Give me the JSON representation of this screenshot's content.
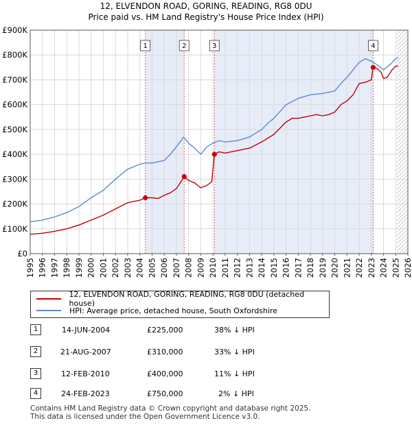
{
  "title_line1": "12, ELVENDON ROAD, GORING, READING, RG8 0DU",
  "title_line2": "Price paid vs. HM Land Registry's House Price Index (HPI)",
  "colors": {
    "property": "#c00000",
    "hpi": "#5b8bd0",
    "shade": "#e6ecf8",
    "marker": "#cc0000"
  },
  "legend": {
    "property_label": "12, ELVENDON ROAD, GORING, READING, RG8 0DU (detached house)",
    "hpi_label": "HPI: Average price, detached house, South Oxfordshire"
  },
  "sales": [
    {
      "num": "1",
      "date": "14-JUN-2004",
      "price": "£225,000",
      "hpi": "38% ↓ HPI"
    },
    {
      "num": "2",
      "date": "21-AUG-2007",
      "price": "£310,000",
      "hpi": "33% ↓ HPI"
    },
    {
      "num": "3",
      "date": "12-FEB-2010",
      "price": "£400,000",
      "hpi": "11% ↓ HPI"
    },
    {
      "num": "4",
      "date": "24-FEB-2023",
      "price": "£750,000",
      "hpi": "2% ↓ HPI"
    }
  ],
  "footer_line1": "Contains HM Land Registry data © Crown copyright and database right 2025.",
  "footer_line2": "This data is licensed under the Open Government Licence v3.0.",
  "chart_data": {
    "type": "line",
    "title": "12, ELVENDON ROAD, GORING, READING, RG8 0DU",
    "subtitle": "Price paid vs. HM Land Registry's House Price Index (HPI)",
    "xlim": [
      1995,
      2026
    ],
    "ylim": [
      0,
      900000
    ],
    "x_ticks": [
      1995,
      1996,
      1997,
      1998,
      1999,
      2000,
      2001,
      2002,
      2003,
      2004,
      2005,
      2006,
      2007,
      2008,
      2009,
      2010,
      2011,
      2012,
      2013,
      2014,
      2015,
      2016,
      2017,
      2018,
      2019,
      2020,
      2021,
      2022,
      2023,
      2024,
      2025,
      2026
    ],
    "y_ticks": [
      {
        "value": 0,
        "label": "£0"
      },
      {
        "value": 100000,
        "label": "£100K"
      },
      {
        "value": 200000,
        "label": "£200K"
      },
      {
        "value": 300000,
        "label": "£300K"
      },
      {
        "value": 400000,
        "label": "£400K"
      },
      {
        "value": 500000,
        "label": "£500K"
      },
      {
        "value": 600000,
        "label": "£600K"
      },
      {
        "value": 700000,
        "label": "£700K"
      },
      {
        "value": 800000,
        "label": "£800K"
      },
      {
        "value": 900000,
        "label": "£900K"
      }
    ],
    "grid": true,
    "shaded_periods": [
      [
        2004.45,
        2007.64
      ],
      [
        2010.12,
        2023.15
      ]
    ],
    "future_hatch_from": 2025.1,
    "series": [
      {
        "name": "12, ELVENDON ROAD, GORING, READING, RG8 0DU (detached house)",
        "color": "#c00000",
        "points": [
          [
            1995.0,
            78000
          ],
          [
            1996.0,
            82000
          ],
          [
            1997.0,
            90000
          ],
          [
            1998.0,
            100000
          ],
          [
            1999.0,
            115000
          ],
          [
            2000.0,
            135000
          ],
          [
            2001.0,
            155000
          ],
          [
            2002.0,
            180000
          ],
          [
            2003.0,
            205000
          ],
          [
            2004.0,
            215000
          ],
          [
            2004.45,
            225000
          ],
          [
            2005.0,
            225000
          ],
          [
            2005.5,
            222000
          ],
          [
            2006.0,
            235000
          ],
          [
            2006.5,
            245000
          ],
          [
            2007.0,
            262000
          ],
          [
            2007.64,
            310000
          ],
          [
            2008.0,
            295000
          ],
          [
            2008.5,
            285000
          ],
          [
            2009.0,
            265000
          ],
          [
            2009.5,
            275000
          ],
          [
            2009.9,
            290000
          ],
          [
            2010.12,
            400000
          ],
          [
            2010.5,
            410000
          ],
          [
            2011.0,
            405000
          ],
          [
            2012.0,
            415000
          ],
          [
            2013.0,
            425000
          ],
          [
            2014.0,
            450000
          ],
          [
            2015.0,
            480000
          ],
          [
            2016.0,
            530000
          ],
          [
            2016.5,
            545000
          ],
          [
            2017.0,
            545000
          ],
          [
            2017.5,
            550000
          ],
          [
            2018.0,
            555000
          ],
          [
            2018.5,
            560000
          ],
          [
            2019.0,
            555000
          ],
          [
            2019.5,
            560000
          ],
          [
            2020.0,
            570000
          ],
          [
            2020.5,
            600000
          ],
          [
            2021.0,
            615000
          ],
          [
            2021.5,
            640000
          ],
          [
            2022.0,
            685000
          ],
          [
            2022.5,
            690000
          ],
          [
            2023.0,
            700000
          ],
          [
            2023.15,
            750000
          ],
          [
            2023.5,
            745000
          ],
          [
            2023.8,
            730000
          ],
          [
            2024.0,
            705000
          ],
          [
            2024.3,
            710000
          ],
          [
            2024.7,
            740000
          ],
          [
            2025.0,
            755000
          ],
          [
            2025.2,
            755000
          ]
        ]
      },
      {
        "name": "HPI: Average price, detached house, South Oxfordshire",
        "color": "#5b8bd0",
        "points": [
          [
            1995.0,
            128000
          ],
          [
            1996.0,
            135000
          ],
          [
            1997.0,
            148000
          ],
          [
            1998.0,
            165000
          ],
          [
            1999.0,
            190000
          ],
          [
            2000.0,
            225000
          ],
          [
            2001.0,
            255000
          ],
          [
            2002.0,
            300000
          ],
          [
            2003.0,
            340000
          ],
          [
            2004.0,
            360000
          ],
          [
            2004.45,
            365000
          ],
          [
            2005.0,
            365000
          ],
          [
            2006.0,
            375000
          ],
          [
            2006.5,
            400000
          ],
          [
            2007.0,
            430000
          ],
          [
            2007.6,
            470000
          ],
          [
            2008.0,
            445000
          ],
          [
            2008.5,
            425000
          ],
          [
            2009.0,
            400000
          ],
          [
            2009.5,
            430000
          ],
          [
            2010.0,
            445000
          ],
          [
            2010.5,
            455000
          ],
          [
            2011.0,
            450000
          ],
          [
            2012.0,
            455000
          ],
          [
            2013.0,
            470000
          ],
          [
            2014.0,
            500000
          ],
          [
            2014.5,
            525000
          ],
          [
            2015.0,
            545000
          ],
          [
            2016.0,
            600000
          ],
          [
            2017.0,
            625000
          ],
          [
            2018.0,
            640000
          ],
          [
            2019.0,
            645000
          ],
          [
            2019.5,
            650000
          ],
          [
            2020.0,
            655000
          ],
          [
            2020.5,
            685000
          ],
          [
            2021.0,
            710000
          ],
          [
            2021.5,
            740000
          ],
          [
            2022.0,
            770000
          ],
          [
            2022.5,
            785000
          ],
          [
            2023.0,
            775000
          ],
          [
            2023.5,
            760000
          ],
          [
            2024.0,
            740000
          ],
          [
            2024.5,
            760000
          ],
          [
            2025.0,
            785000
          ],
          [
            2025.2,
            790000
          ]
        ]
      }
    ],
    "sales_markers": [
      {
        "label": "1",
        "x": 2004.45,
        "y": 225000
      },
      {
        "label": "2",
        "x": 2007.64,
        "y": 310000
      },
      {
        "label": "3",
        "x": 2010.12,
        "y": 400000
      },
      {
        "label": "4",
        "x": 2023.15,
        "y": 750000
      }
    ]
  }
}
